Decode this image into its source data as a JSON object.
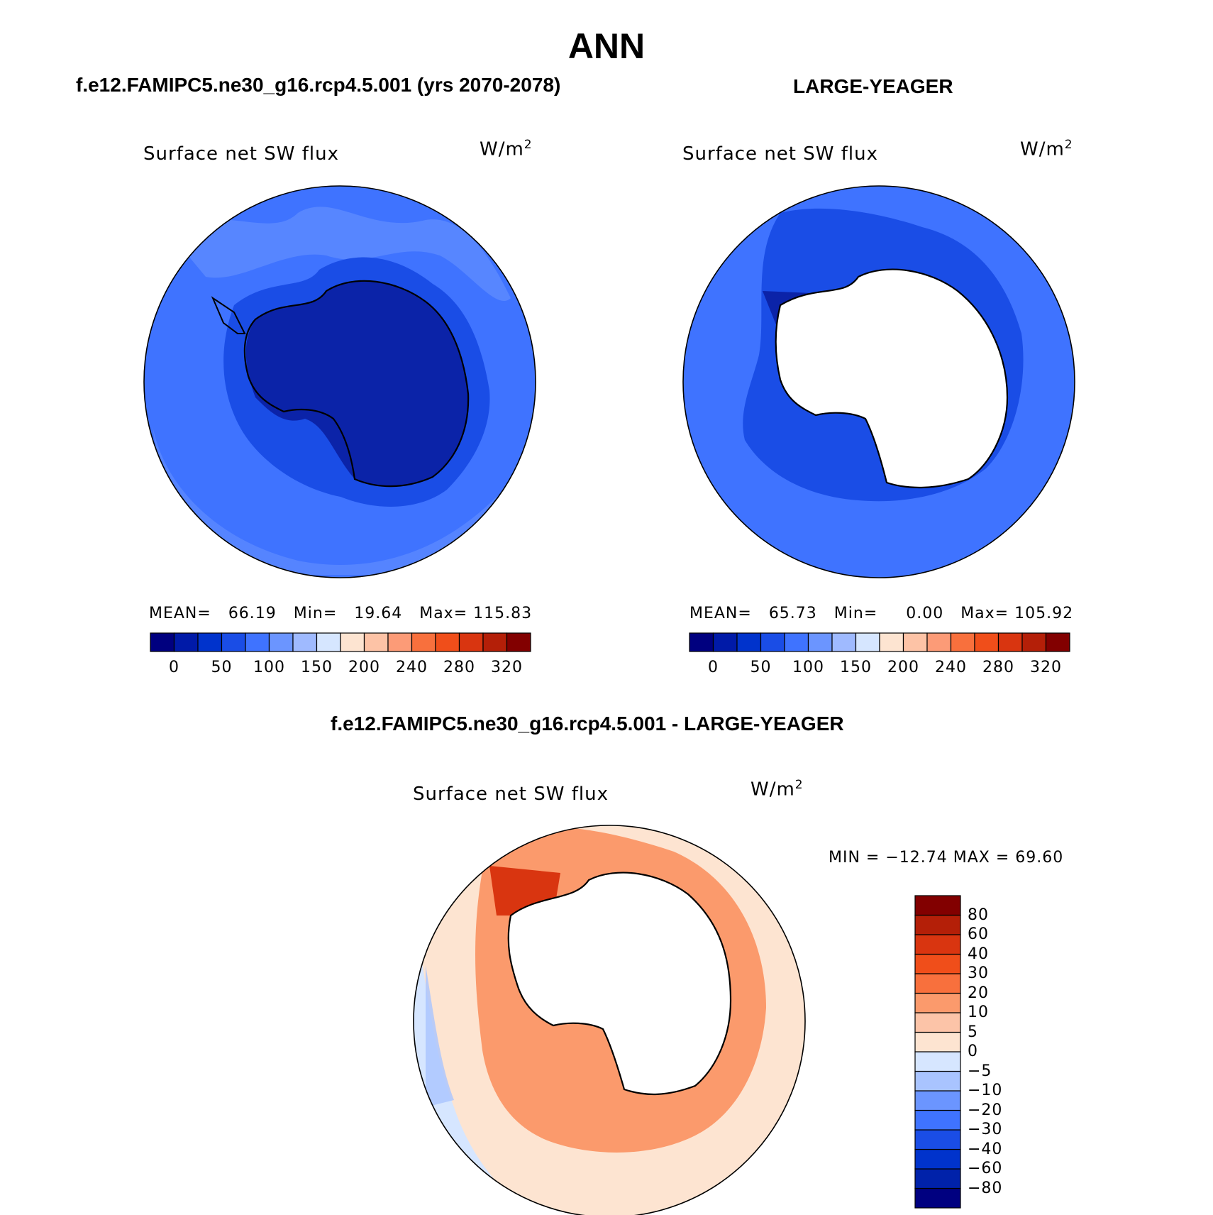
{
  "title": "ANN",
  "units": {
    "base": "W/m",
    "sup": "2"
  },
  "palettes": {
    "abs_fills": [
      "#00007f",
      "#001aa8",
      "#0033cc",
      "#1a4de6",
      "#3f73ff",
      "#6b95ff",
      "#9fbaff",
      "#d6e6ff",
      "#fde4d1",
      "#fdc3a6",
      "#fc9b77",
      "#f8703d",
      "#f04e1a",
      "#d93510",
      "#b41f08",
      "#820000"
    ],
    "diff_fills": [
      "#000080",
      "#0022aa",
      "#0033cc",
      "#1a4de6",
      "#3f73ff",
      "#6b95ff",
      "#a9c4ff",
      "#d6e6ff",
      "#fde4d1",
      "#fcc4a8",
      "#fb9a6c",
      "#f8703d",
      "#f04e1a",
      "#d93510",
      "#b41f08",
      "#820000"
    ],
    "ocean_blue": "#3f73ff",
    "antarctica_dark": "#0b23a8",
    "diff_red": "#f2541f"
  },
  "panels": [
    {
      "subtitle": "f.e12.FAMIPC5.ne30_g16.rcp4.5.001 (yrs 2070-2078)",
      "variable": "Surface net SW flux",
      "stats": {
        "mean_label": "MEAN=",
        "mean": "66.19",
        "min_label": "Min=",
        "min": "19.64",
        "max_label": "Max=",
        "max": "115.83"
      },
      "colorbar_ticks": [
        "0",
        "50",
        "100",
        "150",
        "200",
        "240",
        "280",
        "320"
      ]
    },
    {
      "subtitle": "LARGE-YEAGER",
      "variable": "Surface net SW flux",
      "stats": {
        "mean_label": "MEAN=",
        "mean": "65.73",
        "min_label": "Min=",
        "min": "0.00",
        "max_label": "Max=",
        "max": "105.92"
      },
      "colorbar_ticks": [
        "0",
        "50",
        "100",
        "150",
        "200",
        "240",
        "280",
        "320"
      ]
    }
  ],
  "diff_panel": {
    "subtitle": "f.e12.FAMIPC5.ne30_g16.rcp4.5.001 - LARGE-YEAGER",
    "variable": "Surface net SW flux",
    "stats_text": "MIN = −12.74 MAX =   69.60",
    "colorbar_ticks": [
      "80",
      "60",
      "40",
      "30",
      "20",
      "10",
      "5",
      "0",
      "−5",
      "−10",
      "−20",
      "−30",
      "−40",
      "−60",
      "−80"
    ]
  }
}
